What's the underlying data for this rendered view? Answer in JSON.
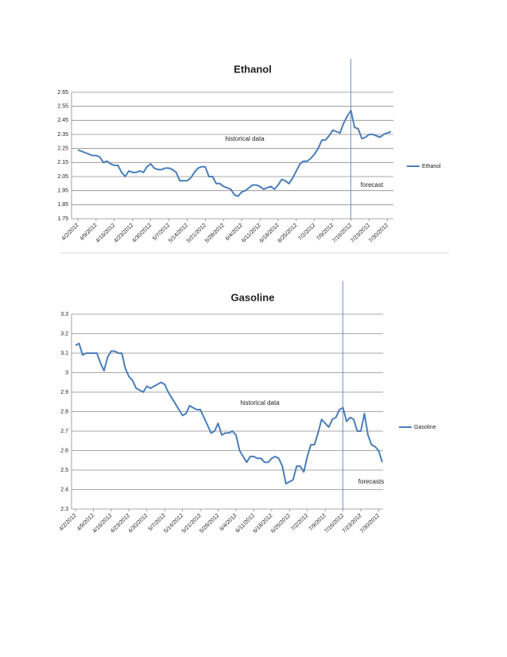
{
  "chart_data": [
    {
      "type": "line",
      "title": "Ethanol",
      "categories": [
        "4/2/2012",
        null,
        null,
        null,
        null,
        "4/9/2012",
        null,
        null,
        null,
        null,
        "4/16/2012",
        null,
        null,
        null,
        null,
        "4/23/2012",
        null,
        null,
        null,
        null,
        "4/30/2012",
        null,
        null,
        null,
        null,
        "5/7/2012",
        null,
        null,
        null,
        null,
        "5/14/2012",
        null,
        null,
        null,
        null,
        "5/21/2012",
        null,
        null,
        null,
        null,
        "5/28/2012",
        null,
        null,
        null,
        null,
        "6/4/2012",
        null,
        null,
        null,
        null,
        "6/11/2012",
        null,
        null,
        null,
        null,
        "6/18/2012",
        null,
        null,
        null,
        null,
        "6/25/2012",
        null,
        null,
        null,
        null,
        "7/2/2012",
        null,
        null,
        null,
        null,
        "7/9/2012",
        null,
        null,
        null,
        null,
        "7/16/2012",
        null,
        null,
        null,
        null,
        "7/23/2012",
        null,
        null,
        null,
        null,
        "7/30/2012",
        null
      ],
      "series": [
        {
          "name": "Ethanol",
          "color": "#4a7ebb",
          "values": [
            2.24,
            2.23,
            2.22,
            2.21,
            2.2,
            2.2,
            2.19,
            2.15,
            2.16,
            2.14,
            2.13,
            2.13,
            2.08,
            2.05,
            2.09,
            2.08,
            2.08,
            2.09,
            2.08,
            2.12,
            2.14,
            2.11,
            2.1,
            2.1,
            2.11,
            2.11,
            2.1,
            2.08,
            2.02,
            2.02,
            2.02,
            2.04,
            2.08,
            2.11,
            2.12,
            2.12,
            2.05,
            2.05,
            2.0,
            2.0,
            1.98,
            1.97,
            1.96,
            1.92,
            1.91,
            1.94,
            1.95,
            1.97,
            1.99,
            1.99,
            1.98,
            1.96,
            1.97,
            1.98,
            1.96,
            1.99,
            2.03,
            2.02,
            2.0,
            2.04,
            2.09,
            2.14,
            2.16,
            2.16,
            2.18,
            2.21,
            2.25,
            2.31,
            2.31,
            2.34,
            2.38,
            2.37,
            2.36,
            2.43,
            2.48,
            2.52,
            2.4,
            2.39,
            2.32,
            2.33,
            2.35,
            2.35,
            2.34,
            2.33,
            2.35,
            2.36,
            2.37
          ]
        }
      ],
      "ylim": [
        1.75,
        2.65
      ],
      "yticks": [
        1.75,
        1.85,
        1.95,
        2.05,
        2.15,
        2.25,
        2.35,
        2.45,
        2.55,
        2.65
      ],
      "grid": true,
      "legend": "right",
      "marker_category": "7/16/2012",
      "annotations": [
        "historical data",
        "forecast"
      ]
    },
    {
      "type": "line",
      "title": "Gasoline",
      "categories": [
        "4/2/2012",
        null,
        null,
        null,
        null,
        "4/9/2012",
        null,
        null,
        null,
        null,
        "4/16/2012",
        null,
        null,
        null,
        null,
        "4/23/2012",
        null,
        null,
        null,
        null,
        "4/30/2012",
        null,
        null,
        null,
        null,
        "5/7/2012",
        null,
        null,
        null,
        null,
        "5/14/2012",
        null,
        null,
        null,
        null,
        "5/21/2012",
        null,
        null,
        null,
        null,
        "5/28/2012",
        null,
        null,
        null,
        null,
        "6/4/2012",
        null,
        null,
        null,
        null,
        "6/11/2012",
        null,
        null,
        null,
        null,
        "6/18/2012",
        null,
        null,
        null,
        null,
        "6/25/2012",
        null,
        null,
        null,
        null,
        "7/2/2012",
        null,
        null,
        null,
        null,
        "7/9/2012",
        null,
        null,
        null,
        null,
        "7/16/2012",
        null,
        null,
        null,
        null,
        "7/23/2012",
        null,
        null,
        null,
        null,
        "7/30/2012",
        null
      ],
      "series": [
        {
          "name": "Gasoline",
          "color": "#4a7ebb",
          "values": [
            3.14,
            3.15,
            3.09,
            3.1,
            3.1,
            3.1,
            3.1,
            3.05,
            3.01,
            3.08,
            3.11,
            3.11,
            3.1,
            3.1,
            3.02,
            2.98,
            2.96,
            2.92,
            2.91,
            2.9,
            2.93,
            2.92,
            2.93,
            2.94,
            2.95,
            2.94,
            2.9,
            2.87,
            2.84,
            2.81,
            2.78,
            2.79,
            2.83,
            2.82,
            2.81,
            2.81,
            2.77,
            2.73,
            2.69,
            2.7,
            2.74,
            2.68,
            2.69,
            2.69,
            2.7,
            2.68,
            2.6,
            2.57,
            2.54,
            2.57,
            2.57,
            2.56,
            2.56,
            2.54,
            2.54,
            2.56,
            2.57,
            2.56,
            2.52,
            2.43,
            2.44,
            2.45,
            2.52,
            2.52,
            2.49,
            2.57,
            2.63,
            2.63,
            2.69,
            2.76,
            2.74,
            2.72,
            2.76,
            2.77,
            2.81,
            2.82,
            2.75,
            2.77,
            2.76,
            2.7,
            2.7,
            2.79,
            2.68,
            2.63,
            2.62,
            2.6,
            2.54
          ]
        }
      ],
      "ylim": [
        2.3,
        3.3
      ],
      "yticks": [
        2.3,
        2.4,
        2.5,
        2.6,
        2.7,
        2.8,
        2.9,
        3,
        3.1,
        3.2,
        3.3
      ],
      "grid": true,
      "legend": "right",
      "marker_category": "7/16/2012",
      "annotations": [
        "historical data",
        "forecasts"
      ]
    }
  ]
}
